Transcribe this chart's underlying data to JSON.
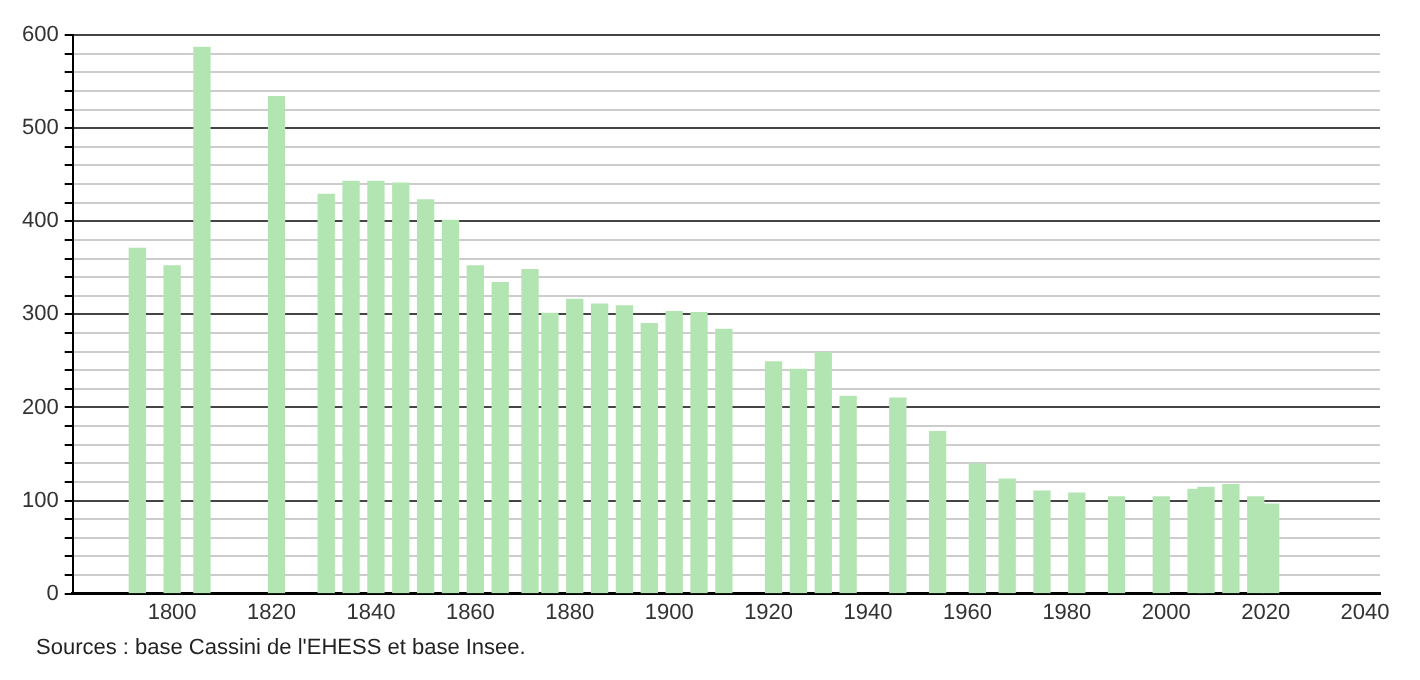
{
  "chart_data": {
    "type": "bar",
    "x": [
      1793,
      1800,
      1806,
      1821,
      1831,
      1836,
      1841,
      1846,
      1851,
      1856,
      1861,
      1866,
      1872,
      1876,
      1881,
      1886,
      1891,
      1896,
      1901,
      1906,
      1911,
      1921,
      1926,
      1931,
      1936,
      1946,
      1954,
      1962,
      1968,
      1975,
      1982,
      1990,
      1999,
      2006,
      2008,
      2013,
      2018,
      2021
    ],
    "values": [
      371,
      352,
      587,
      534,
      429,
      443,
      443,
      441,
      423,
      401,
      352,
      334,
      348,
      301,
      316,
      311,
      309,
      290,
      303,
      302,
      284,
      249,
      241,
      259,
      212,
      210,
      174,
      139,
      123,
      110,
      108,
      104,
      104,
      112,
      114,
      117,
      104,
      96
    ],
    "color": "#b3e5b3",
    "xlim": [
      1780,
      2043
    ],
    "xticks": [
      1800,
      1820,
      1840,
      1860,
      1880,
      1900,
      1920,
      1940,
      1960,
      1980,
      2000,
      2020,
      2040
    ],
    "ylim": [
      0,
      600
    ],
    "yticks": [
      0,
      {
        "value": 20,
        "label": null
      },
      {
        "value": 40,
        "label": null
      },
      {
        "value": 60,
        "label": null
      },
      {
        "value": 80,
        "label": null
      },
      100,
      {
        "value": 120,
        "label": null
      },
      {
        "value": 140,
        "label": null
      },
      {
        "value": 160,
        "label": null
      },
      {
        "value": 180,
        "label": null
      },
      200,
      {
        "value": 220,
        "label": null
      },
      {
        "value": 240,
        "label": null
      },
      {
        "value": 260,
        "label": null
      },
      {
        "value": 280,
        "label": null
      },
      300,
      {
        "value": 320,
        "label": null
      },
      {
        "value": 340,
        "label": null
      },
      {
        "value": 360,
        "label": null
      },
      {
        "value": 380,
        "label": null
      },
      400,
      {
        "value": 420,
        "label": null
      },
      {
        "value": 440,
        "label": null
      },
      {
        "value": 460,
        "label": null
      },
      {
        "value": 480,
        "label": null
      },
      500,
      {
        "value": 520,
        "label": null
      },
      {
        "value": 540,
        "label": null
      },
      {
        "value": 560,
        "label": null
      },
      {
        "value": 580,
        "label": null
      },
      600
    ],
    "grid": "y",
    "annotations": [
      "Sources : base Cassini de l'EHESS et base Insee."
    ]
  }
}
